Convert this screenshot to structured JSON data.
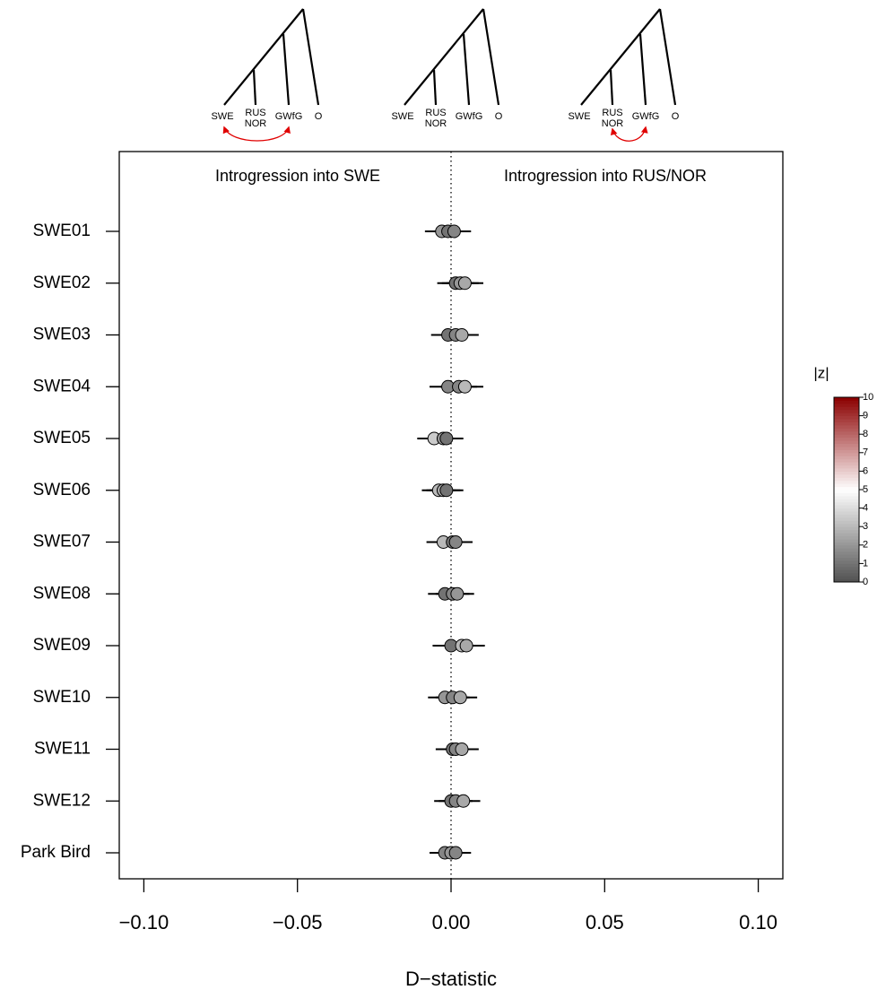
{
  "chart_data": {
    "type": "dotplot",
    "trees": [
      {
        "labels": [
          "SWE",
          "RUS",
          "NOR",
          "GWfG",
          "O"
        ]
      },
      {
        "labels": [
          "SWE",
          "RUS",
          "NOR",
          "GWfG",
          "O"
        ]
      },
      {
        "labels": [
          "SWE",
          "RUS",
          "NOR",
          "GWfG",
          "O"
        ]
      }
    ],
    "annotations": [
      "Introgression into SWE",
      "Introgression into RUS/NOR"
    ],
    "x_label": "D−statistic",
    "categories": [
      "SWE01",
      "SWE02",
      "SWE03",
      "SWE04",
      "SWE05",
      "SWE06",
      "SWE07",
      "SWE08",
      "SWE09",
      "SWE10",
      "SWE11",
      "SWE12",
      "Park Bird"
    ],
    "values": [
      [
        -0.003,
        -0.001,
        0.001
      ],
      [
        0.0015,
        0.003,
        0.0045
      ],
      [
        -0.001,
        0.0015,
        0.0035
      ],
      [
        -0.001,
        0.0025,
        0.0045
      ],
      [
        -0.0055,
        -0.0025,
        -0.0015
      ],
      [
        -0.004,
        -0.0025,
        -0.0015
      ],
      [
        -0.0025,
        0.0005,
        0.0015
      ],
      [
        -0.002,
        0.0005,
        0.002
      ],
      [
        0,
        0.0035,
        0.005
      ],
      [
        -0.002,
        0.0005,
        0.003
      ],
      [
        0.0005,
        0.0015,
        0.0035
      ],
      [
        0,
        0.0015,
        0.004
      ],
      [
        -0.002,
        0,
        0.0015
      ]
    ],
    "errors": [
      [
        0.0055,
        0.0055,
        0.0055
      ],
      [
        0.006,
        0.006,
        0.006
      ],
      [
        0.0055,
        0.0055,
        0.0055
      ],
      [
        0.006,
        0.006,
        0.006
      ],
      [
        0.0055,
        0.0055,
        0.0055
      ],
      [
        0.0055,
        0.0055,
        0.0055
      ],
      [
        0.0055,
        0.0055,
        0.0055
      ],
      [
        0.0055,
        0.0055,
        0.0055
      ],
      [
        0.006,
        0.006,
        0.006
      ],
      [
        0.0055,
        0.0055,
        0.0055
      ],
      [
        0.0055,
        0.0055,
        0.0055
      ],
      [
        0.0055,
        0.0055,
        0.0055
      ],
      [
        0.005,
        0.005,
        0.005
      ]
    ],
    "z": [
      [
        2,
        1,
        1.5
      ],
      [
        1,
        2,
        2.5
      ],
      [
        1,
        1.5,
        2.5
      ],
      [
        1.5,
        1.5,
        3
      ],
      [
        3.5,
        2,
        1
      ],
      [
        3,
        2.5,
        1
      ],
      [
        3,
        1,
        1.5
      ],
      [
        1,
        1.5,
        2
      ],
      [
        1,
        3,
        2.5
      ],
      [
        2,
        1.5,
        2.5
      ],
      [
        1,
        1.5,
        2.5
      ],
      [
        1,
        1.5,
        2.5
      ],
      [
        1.5,
        2,
        1.5
      ]
    ],
    "xlim": [
      -0.108,
      0.108
    ],
    "xticks": [
      {
        "value": -0.1,
        "label": "−0.10"
      },
      {
        "value": -0.05,
        "label": "−0.05"
      },
      {
        "value": 0,
        "label": "0.00"
      },
      0.05,
      {
        "value": 0.1,
        "label": "0.10"
      }
    ],
    "colorbar": {
      "title": "|z|",
      "zlim": [
        0,
        10
      ],
      "ticks": [
        0,
        1,
        2,
        3,
        4,
        5,
        6,
        7,
        8,
        9,
        10
      ],
      "colors": [
        "#505050",
        "#ffffff",
        "#8b0000"
      ]
    },
    "reference_line": 0
  }
}
